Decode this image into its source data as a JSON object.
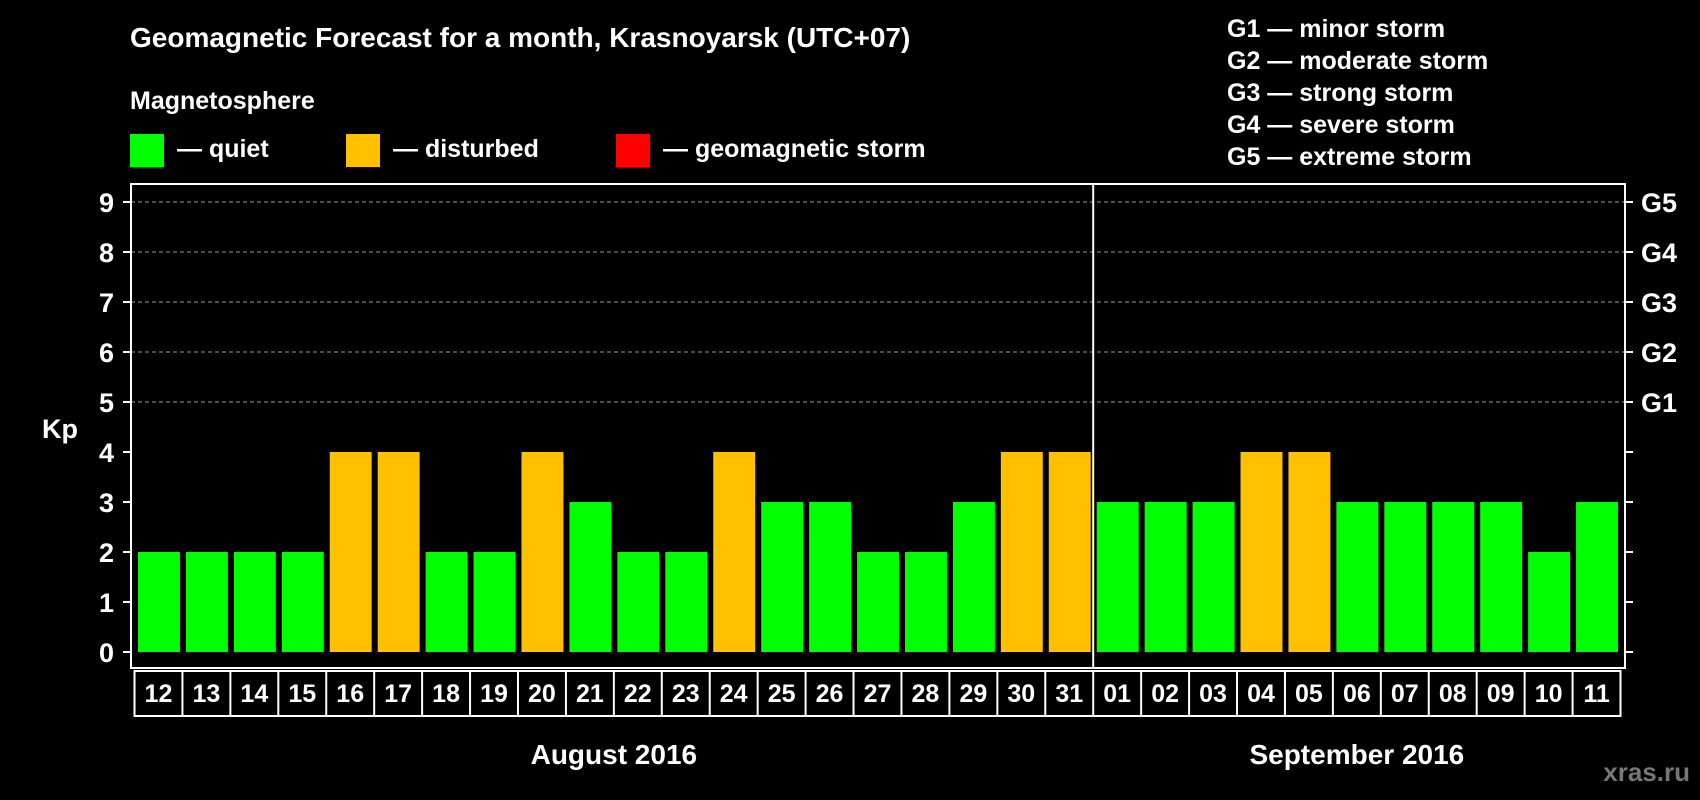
{
  "chart_data": {
    "type": "bar",
    "title": "Geomagnetic Forecast for a month, Krasnoyarsk (UTC+07)",
    "subtitle": "Magnetosphere",
    "ylabel": "Kp",
    "ylim": [
      0,
      9
    ],
    "yticks": [
      0,
      1,
      2,
      3,
      4,
      5,
      6,
      7,
      8,
      9
    ],
    "gridlines_at": [
      5,
      6,
      7,
      8,
      9
    ],
    "right_labels": [
      {
        "kp": 5,
        "label": "G1"
      },
      {
        "kp": 6,
        "label": "G2"
      },
      {
        "kp": 7,
        "label": "G3"
      },
      {
        "kp": 8,
        "label": "G4"
      },
      {
        "kp": 9,
        "label": "G5"
      }
    ],
    "status_legend": [
      {
        "key": "quiet",
        "label": "— quiet",
        "color": "#00ff00"
      },
      {
        "key": "disturbed",
        "label": "— disturbed",
        "color": "#ffc000"
      },
      {
        "key": "storm",
        "label": "— geomagnetic storm",
        "color": "#ff0000"
      }
    ],
    "storm_legend": [
      "G1 — minor storm",
      "G2 — moderate storm",
      "G3 — strong storm",
      "G4 — severe storm",
      "G5 — extreme storm"
    ],
    "categories": [
      "12",
      "13",
      "14",
      "15",
      "16",
      "17",
      "18",
      "19",
      "20",
      "21",
      "22",
      "23",
      "24",
      "25",
      "26",
      "27",
      "28",
      "29",
      "30",
      "31",
      "01",
      "02",
      "03",
      "04",
      "05",
      "06",
      "07",
      "08",
      "09",
      "10",
      "11"
    ],
    "values": [
      2,
      2,
      2,
      2,
      4,
      4,
      2,
      2,
      4,
      3,
      2,
      2,
      4,
      3,
      3,
      2,
      2,
      3,
      4,
      4,
      3,
      3,
      3,
      4,
      4,
      3,
      3,
      3,
      3,
      2,
      3
    ],
    "status": [
      "quiet",
      "quiet",
      "quiet",
      "quiet",
      "disturbed",
      "disturbed",
      "quiet",
      "quiet",
      "disturbed",
      "quiet",
      "quiet",
      "quiet",
      "disturbed",
      "quiet",
      "quiet",
      "quiet",
      "quiet",
      "quiet",
      "disturbed",
      "disturbed",
      "quiet",
      "quiet",
      "quiet",
      "disturbed",
      "disturbed",
      "quiet",
      "quiet",
      "quiet",
      "quiet",
      "quiet",
      "quiet"
    ],
    "months": [
      {
        "label": "August 2016",
        "days": 20
      },
      {
        "label": "September 2016",
        "days": 11
      }
    ]
  },
  "watermark": "xras.ru"
}
